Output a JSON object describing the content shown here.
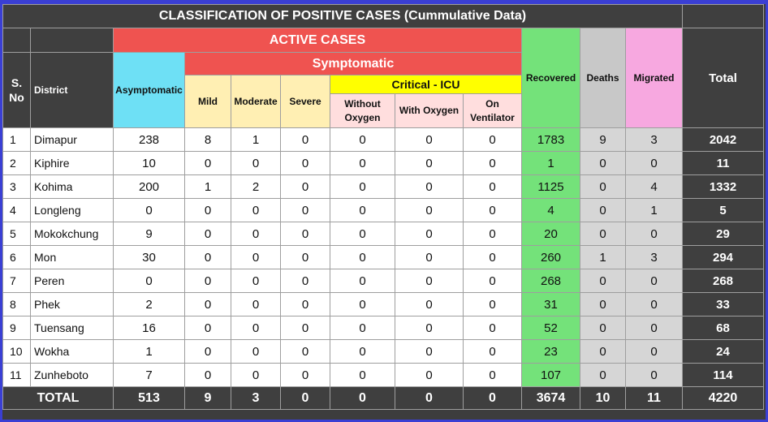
{
  "title": "CLASSIFICATION OF POSITIVE CASES (Cummulative Data)",
  "headers": {
    "active_cases": "ACTIVE CASES",
    "symptomatic": "Symptomatic",
    "critical_icu": "Critical - ICU",
    "sno": "S. No",
    "district": "District",
    "asymptomatic": "Asymptomatic",
    "mild": "Mild",
    "moderate": "Moderate",
    "severe": "Severe",
    "without_oxygen": "Without Oxygen",
    "with_oxygen": "With Oxygen",
    "on_ventilator": "On Ventilator",
    "recovered": "Recovered",
    "deaths": "Deaths",
    "migrated": "Migrated",
    "total": "Total"
  },
  "rows": [
    [
      "1",
      "Dimapur",
      "238",
      "8",
      "1",
      "0",
      "0",
      "0",
      "0",
      "1783",
      "9",
      "3",
      "2042"
    ],
    [
      "2",
      "Kiphire",
      "10",
      "0",
      "0",
      "0",
      "0",
      "0",
      "0",
      "1",
      "0",
      "0",
      "11"
    ],
    [
      "3",
      "Kohima",
      "200",
      "1",
      "2",
      "0",
      "0",
      "0",
      "0",
      "1125",
      "0",
      "4",
      "1332"
    ],
    [
      "4",
      "Longleng",
      "0",
      "0",
      "0",
      "0",
      "0",
      "0",
      "0",
      "4",
      "0",
      "1",
      "5"
    ],
    [
      "5",
      "Mokokchung",
      "9",
      "0",
      "0",
      "0",
      "0",
      "0",
      "0",
      "20",
      "0",
      "0",
      "29"
    ],
    [
      "6",
      "Mon",
      "30",
      "0",
      "0",
      "0",
      "0",
      "0",
      "0",
      "260",
      "1",
      "3",
      "294"
    ],
    [
      "7",
      "Peren",
      "0",
      "0",
      "0",
      "0",
      "0",
      "0",
      "0",
      "268",
      "0",
      "0",
      "268"
    ],
    [
      "8",
      "Phek",
      "2",
      "0",
      "0",
      "0",
      "0",
      "0",
      "0",
      "31",
      "0",
      "0",
      "33"
    ],
    [
      "9",
      "Tuensang",
      "16",
      "0",
      "0",
      "0",
      "0",
      "0",
      "0",
      "52",
      "0",
      "0",
      "68"
    ],
    [
      "10",
      "Wokha",
      "1",
      "0",
      "0",
      "0",
      "0",
      "0",
      "0",
      "23",
      "0",
      "0",
      "24"
    ],
    [
      "11",
      "Zunheboto",
      "7",
      "0",
      "0",
      "0",
      "0",
      "0",
      "0",
      "107",
      "0",
      "0",
      "114"
    ]
  ],
  "totals": {
    "label": "TOTAL",
    "values": [
      "513",
      "9",
      "3",
      "0",
      "0",
      "0",
      "0",
      "3674",
      "10",
      "11",
      "4220"
    ]
  }
}
